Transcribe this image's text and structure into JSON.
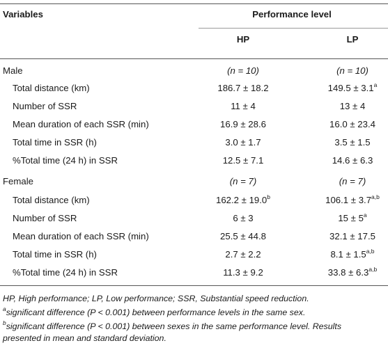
{
  "table": {
    "header": {
      "variables_label": "Variables",
      "group_label": "Performance level",
      "col_hp": "HP",
      "col_lp": "LP"
    },
    "sections": [
      {
        "label": "Male",
        "n_hp": "(n = 10)",
        "n_lp": "(n = 10)",
        "rows": [
          {
            "label": "Total distance (km)",
            "hp": "186.7 ± 18.2",
            "hp_sup": "",
            "lp": "149.5 ± 3.1",
            "lp_sup": "a"
          },
          {
            "label": "Number of SSR",
            "hp": "11 ± 4",
            "hp_sup": "",
            "lp": "13 ± 4",
            "lp_sup": ""
          },
          {
            "label": "Mean duration of each SSR (min)",
            "hp": "16.9 ± 28.6",
            "hp_sup": "",
            "lp": "16.0 ± 23.4",
            "lp_sup": ""
          },
          {
            "label": "Total time in SSR (h)",
            "hp": "3.0 ± 1.7",
            "hp_sup": "",
            "lp": "3.5 ± 1.5",
            "lp_sup": ""
          },
          {
            "label": "%Total time (24 h) in SSR",
            "hp": "12.5 ± 7.1",
            "hp_sup": "",
            "lp": "14.6 ± 6.3",
            "lp_sup": ""
          }
        ]
      },
      {
        "label": "Female",
        "n_hp": "(n = 7)",
        "n_lp": "(n = 7)",
        "rows": [
          {
            "label": "Total distance (km)",
            "hp": "162.2 ± 19.0",
            "hp_sup": "b",
            "lp": "106.1 ± 3.7",
            "lp_sup": "a,b"
          },
          {
            "label": "Number of SSR",
            "hp": "6 ± 3",
            "hp_sup": "",
            "lp": "15 ± 5",
            "lp_sup": "a"
          },
          {
            "label": "Mean duration of each SSR (min)",
            "hp": "25.5 ± 44.8",
            "hp_sup": "",
            "lp": "32.1 ± 17.5",
            "lp_sup": ""
          },
          {
            "label": "Total time in SSR (h)",
            "hp": "2.7 ± 2.2",
            "hp_sup": "",
            "lp": "8.1 ± 1.5",
            "lp_sup": "a,b"
          },
          {
            "label": "%Total time (24 h) in SSR",
            "hp": "11.3 ± 9.2",
            "hp_sup": "",
            "lp": "33.8 ± 6.3",
            "lp_sup": "a,b"
          }
        ]
      }
    ]
  },
  "footnotes": {
    "abbreviations": "HP, High performance; LP, Low performance; SSR, Substantial speed reduction.",
    "note_a_sup": "a",
    "note_a": "significant difference (P < 0.001) between performance levels in the same sex.",
    "note_b_sup": "b",
    "note_b_line1": "significant difference (P < 0.001) between sexes in the same performance level. Results",
    "note_b_line2": "presented in mean and standard deviation."
  }
}
